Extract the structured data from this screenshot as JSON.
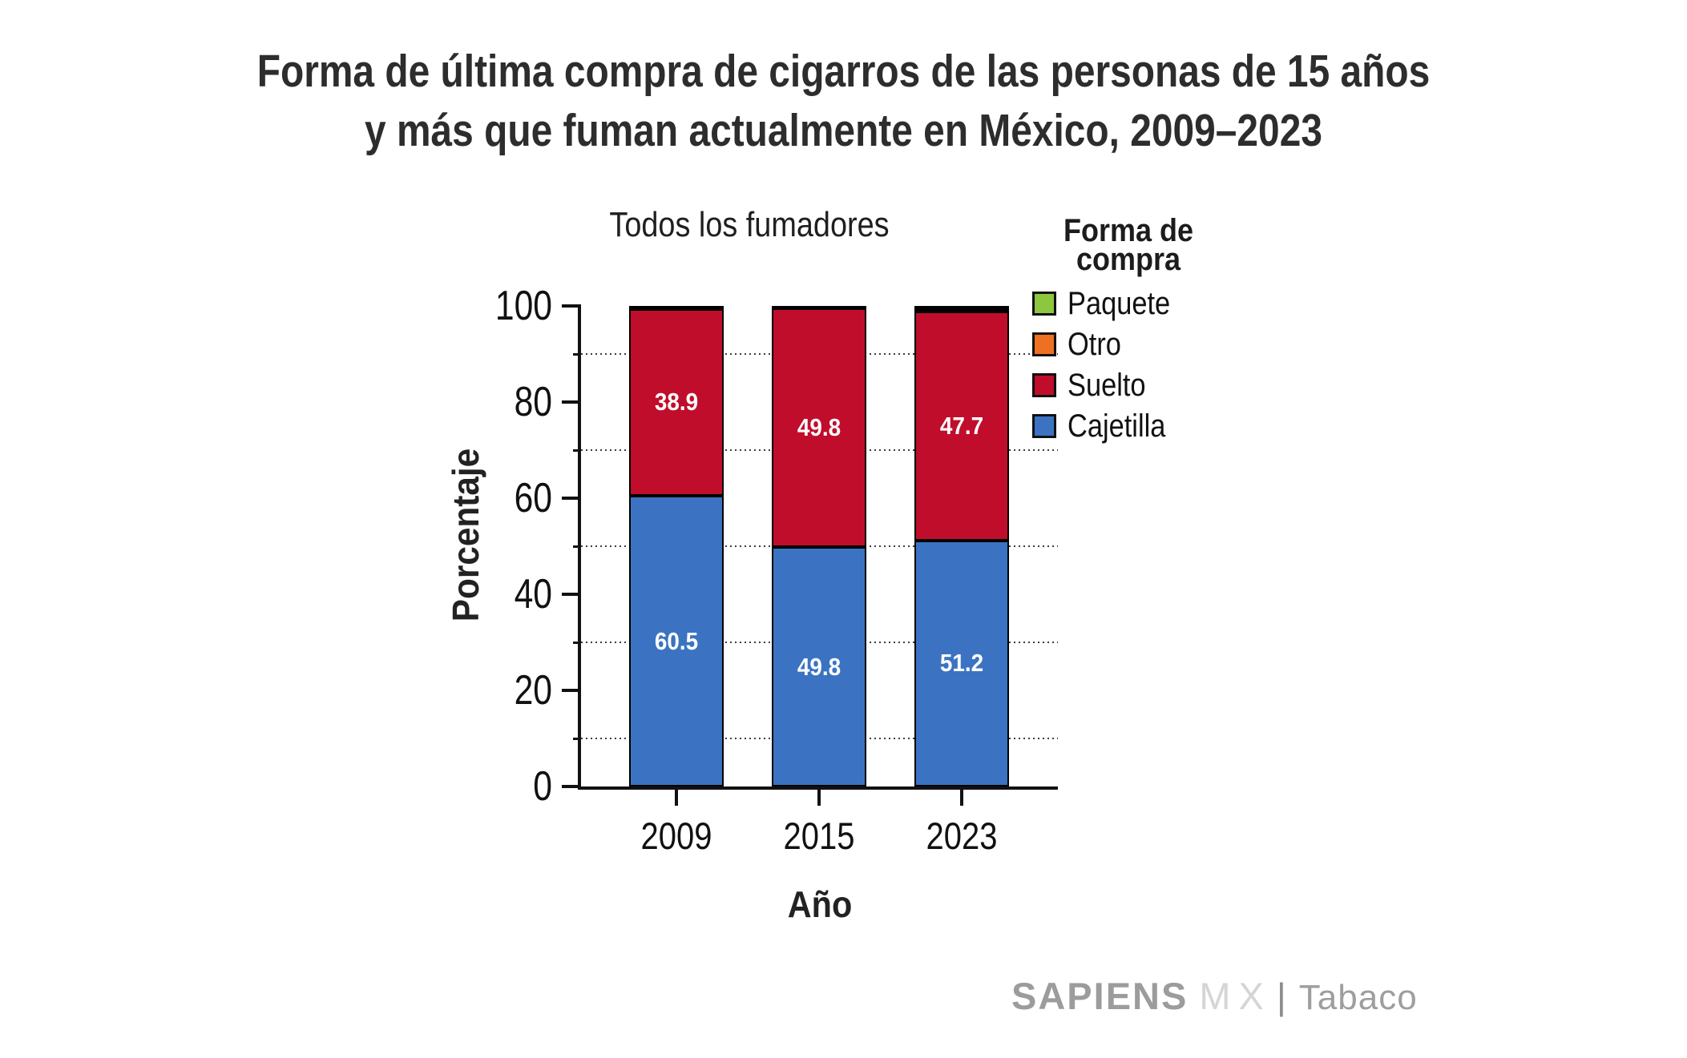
{
  "title": {
    "line1": "Forma de última compra de cigarros de las personas de 15 años",
    "line2": "y más que fuman actualmente en México, 2009–2023"
  },
  "subtitle": "Todos los fumadores",
  "axes": {
    "y_label": "Porcentaje",
    "x_label": "Año",
    "y_major_ticks": [
      0,
      20,
      40,
      60,
      80,
      100
    ],
    "y_minor_gridlines": [
      10,
      30,
      50,
      70,
      90
    ],
    "y_range": [
      0,
      100
    ]
  },
  "legend": {
    "title_line1": "Forma de",
    "title_line2": "compra",
    "items": [
      {
        "label": "Paquete",
        "color": "#8DC63F"
      },
      {
        "label": "Otro",
        "color": "#EE7023"
      },
      {
        "label": "Suelto",
        "color": "#C00D2B"
      },
      {
        "label": "Cajetilla",
        "color": "#3B73C2"
      }
    ]
  },
  "chart_data": {
    "type": "bar",
    "stacked": true,
    "title": "Todos los fumadores",
    "xlabel": "Año",
    "ylabel": "Porcentaje",
    "ylim": [
      0,
      100
    ],
    "grid": "dotted horizontal at 10,30,50,70,90",
    "legend_position": "right",
    "categories": [
      "2009",
      "2015",
      "2023"
    ],
    "series": [
      {
        "name": "Cajetilla",
        "color": "#3B73C2",
        "values": [
          60.5,
          49.8,
          51.2
        ],
        "labels": [
          "60.5",
          "49.8",
          "51.2"
        ]
      },
      {
        "name": "Suelto",
        "color": "#C00D2B",
        "values": [
          38.9,
          49.8,
          47.7
        ],
        "labels": [
          "38.9",
          "49.8",
          "47.7"
        ]
      },
      {
        "name": "Otro",
        "color": "#EE7023",
        "values": [
          0.2,
          0.2,
          0.6
        ],
        "labels": [
          "",
          "",
          ""
        ],
        "estimated_values": true
      },
      {
        "name": "Paquete",
        "color": "#8DC63F",
        "values": [
          0.4,
          0.2,
          0.5
        ],
        "labels": [
          "",
          "",
          ""
        ],
        "estimated_values": true
      }
    ]
  },
  "footer": {
    "brand_bold": "SAPIENS",
    "brand_light": "MX",
    "separator": "|",
    "tag": "Tabaco"
  }
}
